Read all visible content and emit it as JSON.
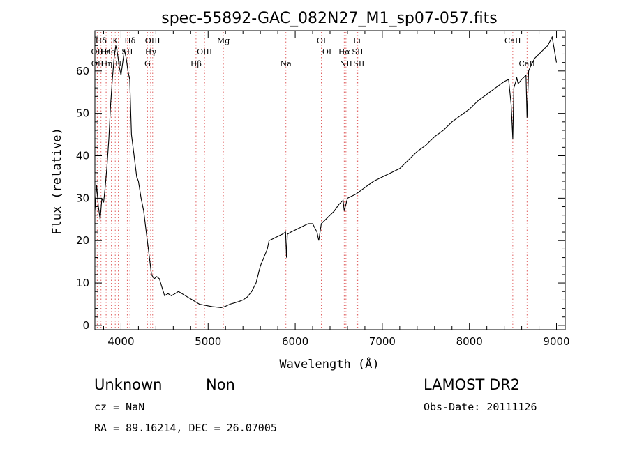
{
  "chart_data": {
    "type": "line",
    "title": "spec-55892-GAC_082N27_M1_sp07-057.fits",
    "xlabel": "Wavelength (Å)",
    "ylabel": "Flux (relative)",
    "xlim": [
      3700,
      9100
    ],
    "ylim": [
      -1,
      69.5
    ],
    "xticks": [
      4000,
      5000,
      6000,
      7000,
      8000,
      9000
    ],
    "yticks": [
      0,
      10,
      20,
      30,
      40,
      50,
      60
    ],
    "grid": false,
    "series": [
      {
        "x": [
          3700,
          3720,
          3740,
          3760,
          3780,
          3800,
          3820,
          3840,
          3860,
          3880,
          3900,
          3920,
          3940,
          3960,
          3980,
          4000,
          4020,
          4040,
          4060,
          4080,
          4100,
          4120,
          4150,
          4180,
          4200,
          4230,
          4260,
          4290,
          4320,
          4350,
          4380,
          4410,
          4440,
          4470,
          4500,
          4540,
          4580,
          4620,
          4660,
          4700,
          4740,
          4780,
          4820,
          4860,
          4900,
          4950,
          5000,
          5050,
          5100,
          5150,
          5200,
          5250,
          5300,
          5350,
          5400,
          5450,
          5500,
          5550,
          5600,
          5640,
          5680,
          5700,
          5750,
          5800,
          5850,
          5890,
          5900,
          5910,
          5950,
          6000,
          6050,
          6100,
          6150,
          6200,
          6250,
          6270,
          6300,
          6350,
          6400,
          6450,
          6500,
          6550,
          6563,
          6600,
          6700,
          6800,
          6900,
          7000,
          7100,
          7200,
          7300,
          7400,
          7500,
          7600,
          7700,
          7800,
          7900,
          8000,
          8100,
          8200,
          8300,
          8400,
          8450,
          8480,
          8498,
          8510,
          8540,
          8542,
          8560,
          8600,
          8650,
          8662,
          8680,
          8700,
          8750,
          8800,
          8850,
          8900,
          8950,
          9000
        ],
        "values": [
          27,
          33,
          28,
          25,
          30,
          29,
          33,
          38,
          44,
          52,
          58,
          63,
          66,
          64,
          61,
          59,
          62,
          65,
          63,
          60,
          58,
          45,
          40,
          35,
          34,
          30,
          27,
          22,
          17,
          12,
          11,
          11.5,
          11,
          9,
          7,
          7.5,
          7,
          7.5,
          8,
          7.5,
          7,
          6.5,
          6,
          5.5,
          5,
          4.8,
          4.6,
          4.4,
          4.3,
          4.2,
          4.5,
          5,
          5.3,
          5.6,
          6,
          6.7,
          8,
          10,
          14,
          16,
          18,
          20,
          20.5,
          21,
          21.5,
          22,
          16,
          21.5,
          22,
          22.5,
          23,
          23.5,
          24,
          24,
          22,
          20,
          24,
          25,
          26,
          27,
          28.5,
          29.5,
          27,
          30,
          31,
          32.5,
          34,
          35,
          36,
          37,
          39,
          41,
          42.5,
          44.5,
          46,
          48,
          49.5,
          51,
          53,
          54.5,
          56,
          57.5,
          58,
          52,
          44,
          56,
          58,
          58.5,
          57,
          58,
          59,
          49,
          60,
          61,
          63,
          64,
          65,
          66,
          68,
          62
        ]
      }
    ],
    "lines": [
      {
        "label": "Hδ",
        "wl": 3770,
        "row": 1
      },
      {
        "label": "OII",
        "wl": 3727,
        "row": 2
      },
      {
        "label": "OII",
        "wl": 3729,
        "row": 3
      },
      {
        "label": "Hε",
        "wl": 3820,
        "row": 2
      },
      {
        "label": "Hη",
        "wl": 3835,
        "row": 3
      },
      {
        "label": "K",
        "wl": 3934,
        "row": 1
      },
      {
        "label": "HeI",
        "wl": 3889,
        "row": 2
      },
      {
        "label": "H",
        "wl": 3969,
        "row": 3
      },
      {
        "label": "SII",
        "wl": 4072,
        "row": 2
      },
      {
        "label": "Hδ",
        "wl": 4102,
        "row": 1
      },
      {
        "label": "OIII",
        "wl": 4363,
        "row": 1
      },
      {
        "label": "Hγ",
        "wl": 4340,
        "row": 2
      },
      {
        "label": "G",
        "wl": 4304,
        "row": 3
      },
      {
        "label": "OIII",
        "wl": 4959,
        "row": 2
      },
      {
        "label": "Hβ",
        "wl": 4861,
        "row": 3
      },
      {
        "label": "Mg",
        "wl": 5175,
        "row": 1
      },
      {
        "label": "Na",
        "wl": 5893,
        "row": 3
      },
      {
        "label": "OI",
        "wl": 6300,
        "row": 1
      },
      {
        "label": "OI",
        "wl": 6364,
        "row": 2
      },
      {
        "label": "Hα",
        "wl": 6563,
        "row": 2
      },
      {
        "label": "NII",
        "wl": 6583,
        "row": 3
      },
      {
        "label": "Li",
        "wl": 6708,
        "row": 1
      },
      {
        "label": "SII",
        "wl": 6716,
        "row": 2
      },
      {
        "label": "SII",
        "wl": 6731,
        "row": 3
      },
      {
        "label": "CaII",
        "wl": 8498,
        "row": 1
      },
      {
        "label": "CaII",
        "wl": 8662,
        "row": 3
      }
    ]
  },
  "info": {
    "object_class": "Unknown",
    "subclass": "Non",
    "survey": "LAMOST DR2",
    "redshift": "cz = NaN",
    "obs_date": "Obs-Date: 20111126",
    "coords": "RA =  89.16214, DEC =  26.07005"
  }
}
